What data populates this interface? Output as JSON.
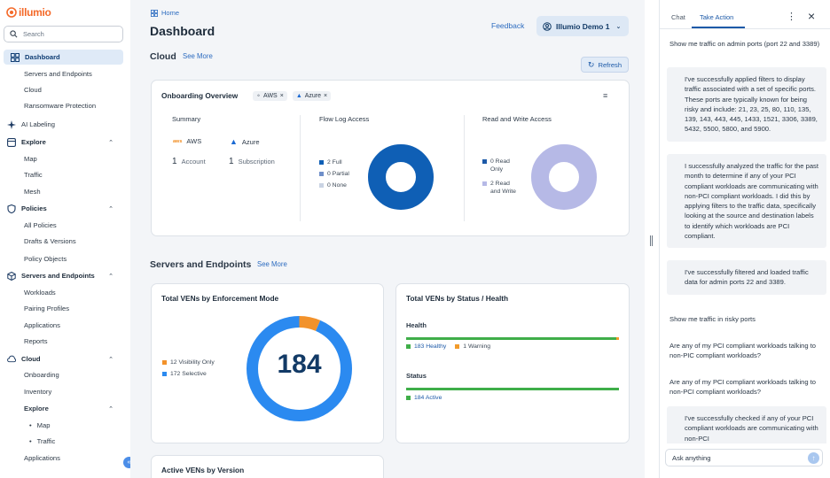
{
  "app": {
    "logo": "illumio"
  },
  "search": {
    "placeholder": "Search"
  },
  "sidebar": {
    "items": [
      {
        "label": "Dashboard"
      },
      {
        "label": "Servers and Endpoints"
      },
      {
        "label": "Cloud"
      },
      {
        "label": "Ransomware Protection"
      },
      {
        "label": "AI Labeling"
      },
      {
        "label": "Explore"
      },
      {
        "label": "Map"
      },
      {
        "label": "Traffic"
      },
      {
        "label": "Mesh"
      },
      {
        "label": "Policies"
      },
      {
        "label": "All Policies"
      },
      {
        "label": "Drafts & Versions"
      },
      {
        "label": "Policy Objects"
      },
      {
        "label": "Servers and Endpoints"
      },
      {
        "label": "Workloads"
      },
      {
        "label": "Pairing Profiles"
      },
      {
        "label": "Applications"
      },
      {
        "label": "Reports"
      },
      {
        "label": "Cloud"
      },
      {
        "label": "Onboarding"
      },
      {
        "label": "Inventory"
      },
      {
        "label": "Explore"
      },
      {
        "label": "Map"
      },
      {
        "label": "Traffic"
      },
      {
        "label": "Applications"
      }
    ]
  },
  "header": {
    "breadcrumb": "Home",
    "title": "Dashboard",
    "feedback": "Feedback",
    "org": "Illumio Demo 1"
  },
  "cloud": {
    "title": "Cloud",
    "see_more": "See More",
    "refresh": "Refresh",
    "onboarding": {
      "title": "Onboarding Overview",
      "chips": [
        "AWS",
        "Azure"
      ],
      "summary_title": "Summary",
      "providers": [
        {
          "name": "AWS",
          "count": "1",
          "unit": "Account"
        },
        {
          "name": "Azure",
          "count": "1",
          "unit": "Subscription"
        }
      ],
      "flow_log": {
        "title": "Flow Log Access",
        "legend": [
          "2 Full",
          "0 Partial",
          "0 None"
        ]
      },
      "rw_access": {
        "title": "Read and Write Access",
        "legend": [
          "0 Read Only",
          "2 Read and Write"
        ]
      }
    }
  },
  "servers": {
    "title": "Servers and Endpoints",
    "see_more": "See More",
    "vens_mode": {
      "title": "Total VENs by Enforcement Mode",
      "total": "184",
      "legend": [
        "12 Visibility Only",
        "172 Selective"
      ]
    },
    "vens_status": {
      "title": "Total VENs by Status / Health",
      "health_label": "Health",
      "health_legend": [
        "183 Healthy",
        "1 Warning"
      ],
      "status_label": "Status",
      "status_legend": [
        "184 Active"
      ]
    },
    "active_versions": {
      "title": "Active VENs by Version"
    }
  },
  "chart_data": [
    {
      "type": "pie",
      "title": "Flow Log Access",
      "categories": [
        "Full",
        "Partial",
        "None"
      ],
      "values": [
        2,
        0,
        0
      ],
      "colors": [
        "#0f5fb5",
        "#6f8fc9",
        "#c9d3e3"
      ]
    },
    {
      "type": "pie",
      "title": "Read and Write Access",
      "categories": [
        "Read Only",
        "Read and Write"
      ],
      "values": [
        0,
        2
      ],
      "colors": [
        "#1d5aa8",
        "#b6b9e6"
      ]
    },
    {
      "type": "pie",
      "title": "Total VENs by Enforcement Mode",
      "categories": [
        "Visibility Only",
        "Selective"
      ],
      "values": [
        12,
        172
      ],
      "colors": [
        "#f2922b",
        "#2b8af0"
      ]
    },
    {
      "type": "bar",
      "title": "Health",
      "categories": [
        "Healthy",
        "Warning"
      ],
      "values": [
        183,
        1
      ],
      "colors": [
        "#3fae49",
        "#f29b2b"
      ]
    },
    {
      "type": "bar",
      "title": "Status",
      "categories": [
        "Active"
      ],
      "values": [
        184
      ],
      "colors": [
        "#3fae49"
      ]
    }
  ],
  "panel": {
    "tabs": [
      "Chat",
      "Take Action"
    ],
    "messages": [
      {
        "role": "user",
        "text": "Show me traffic on admin ports (port 22 and 3389)"
      },
      {
        "role": "bot",
        "text": "I've successfully applied filters to display traffic associated with a set of specific ports. These ports are typically known for being risky and include: 21, 23, 25, 80, 110, 135, 139, 143, 443, 445, 1433, 1521, 3306, 3389, 5432, 5500, 5800, and 5900."
      },
      {
        "role": "bot",
        "text": "I successfully analyzed the traffic for the past month to determine if any of your PCI compliant workloads are communicating with non-PCI compliant workloads. I did this by applying filters to the traffic data, specifically looking at the source and destination labels to identify which workloads are PCI compliant."
      },
      {
        "role": "bot",
        "text": "I've successfully filtered and loaded traffic data for admin ports 22 and 3389."
      },
      {
        "role": "user",
        "text": "Show me traffic in risky ports"
      },
      {
        "role": "user",
        "text": "Are any of my PCI compliant workloads talking to non-PIC compliant workloads?"
      },
      {
        "role": "user",
        "text": "Are any of my PCI compliant workloads talking to non-PCI compliant workloads?"
      },
      {
        "role": "bot",
        "text": "I've successfully checked if any of your PCI compliant workloads are communicating with non-PCI"
      }
    ],
    "input_value": "Ask anything"
  }
}
